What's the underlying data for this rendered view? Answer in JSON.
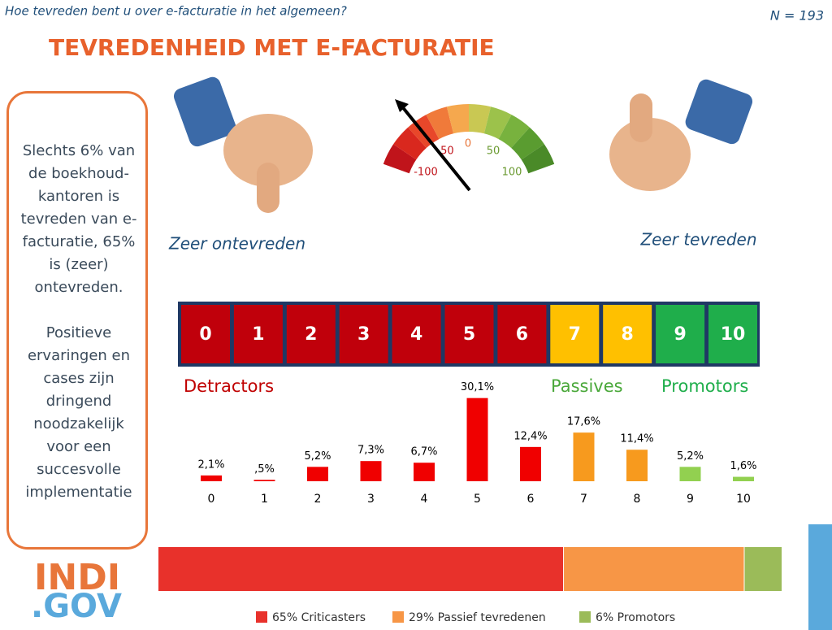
{
  "header": {
    "question": "Hoe tevreden bent u over e-facturatie in het algemeen?",
    "n": "N = 193",
    "title": "TEVREDENHEID MET E-FACTURATIE"
  },
  "sidebar": {
    "paragraphs": [
      "Slechts 6% van de boekhoud-kantoren is tevreden van e-facturatie, 65% is (zeer) ontevreden.",
      "Positieve ervaringen en cases zijn dringend noodzakelijk voor een succesvolle implementatie"
    ]
  },
  "gauge": {
    "labels": [
      "-100",
      "-50",
      "0",
      "50",
      "100"
    ]
  },
  "scale": {
    "left_label": "Zeer ontevreden",
    "right_label": "Zeer tevreden",
    "boxes": [
      "0",
      "1",
      "2",
      "3",
      "4",
      "5",
      "6",
      "7",
      "8",
      "9",
      "10"
    ],
    "groups": [
      "Detractors",
      "Passives",
      "Promotors"
    ]
  },
  "logo": {
    "top": "INDI",
    "bottom": ".GOV"
  },
  "chart_data": [
    {
      "type": "bar",
      "categories": [
        "0",
        "1",
        "2",
        "3",
        "4",
        "5",
        "6",
        "7",
        "8",
        "9",
        "10"
      ],
      "values": [
        2.1,
        0.5,
        5.2,
        7.3,
        6.7,
        30.1,
        12.4,
        17.6,
        11.4,
        5.2,
        1.6
      ],
      "value_labels": [
        "2,1%",
        ",5%",
        "5,2%",
        "7,3%",
        "6,7%",
        "30,1%",
        "12,4%",
        "17,6%",
        "11,4%",
        "5,2%",
        "1,6%"
      ],
      "colors": [
        "#f00000",
        "#f00000",
        "#f00000",
        "#f00000",
        "#f00000",
        "#f00000",
        "#f00000",
        "#f79a1e",
        "#f79a1e",
        "#92d050",
        "#92d050"
      ]
    },
    {
      "type": "stacked-bar",
      "orientation": "horizontal",
      "series": [
        {
          "name": "65% Criticasters",
          "color": "#e8312b",
          "values": [
            65
          ]
        },
        {
          "name": "29% Passief tevredenen",
          "color": "#f79646",
          "values": [
            29
          ]
        },
        {
          "name": "6% Promotors",
          "color": "#9bbb59",
          "values": [
            6
          ]
        }
      ]
    }
  ]
}
